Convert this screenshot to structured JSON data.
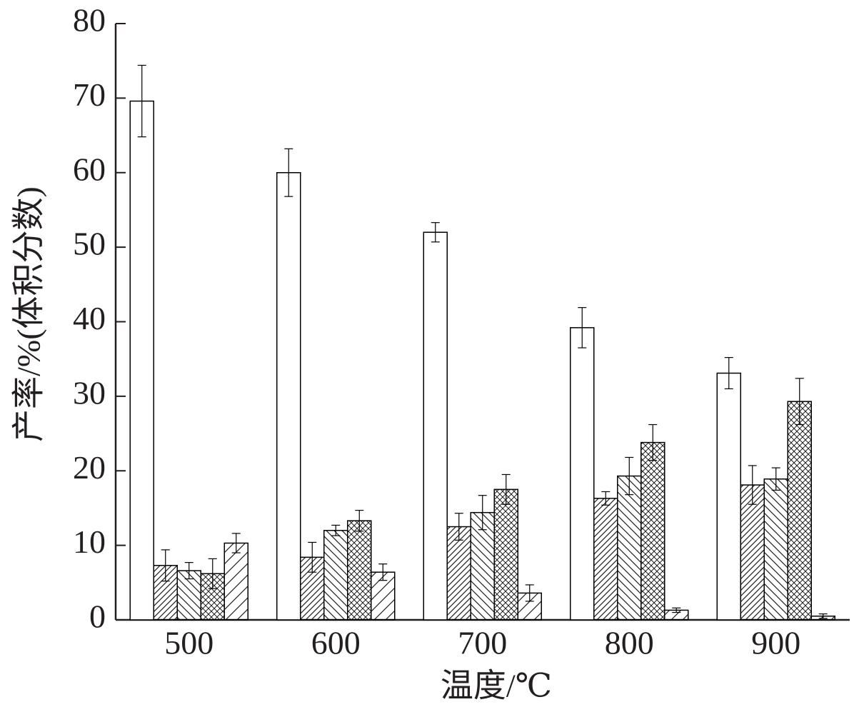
{
  "chart_data": {
    "type": "bar",
    "xlabel": "温度/℃",
    "ylabel": "产率/%(体积分数)",
    "categories": [
      "500",
      "600",
      "700",
      "800",
      "900"
    ],
    "series": [
      {
        "hatch": "none",
        "color": "#000000",
        "values": [
          69.6,
          60.0,
          52.0,
          39.2,
          33.1
        ],
        "errors": [
          4.8,
          3.2,
          1.3,
          2.7,
          2.1
        ]
      },
      {
        "hatch": "dense-right",
        "color": "#000000",
        "values": [
          7.3,
          8.4,
          12.5,
          16.3,
          18.1
        ],
        "errors": [
          2.1,
          2.0,
          1.8,
          0.9,
          2.6
        ]
      },
      {
        "hatch": "left",
        "color": "#000000",
        "values": [
          6.6,
          12.0,
          14.4,
          19.3,
          18.9
        ],
        "errors": [
          1.1,
          0.7,
          2.3,
          2.5,
          1.5
        ]
      },
      {
        "hatch": "cross",
        "color": "#000000",
        "values": [
          6.2,
          13.3,
          17.5,
          23.8,
          29.3
        ],
        "errors": [
          2.0,
          1.4,
          2.0,
          2.4,
          3.1
        ]
      },
      {
        "hatch": "sparse-right",
        "color": "#000000",
        "values": [
          10.3,
          6.4,
          3.6,
          1.3,
          0.5
        ],
        "errors": [
          1.3,
          1.1,
          1.1,
          0.3,
          0.3
        ]
      }
    ],
    "ylim": [
      0,
      80
    ],
    "yticks": [
      0,
      10,
      20,
      30,
      40,
      50,
      60,
      70,
      80
    ]
  }
}
